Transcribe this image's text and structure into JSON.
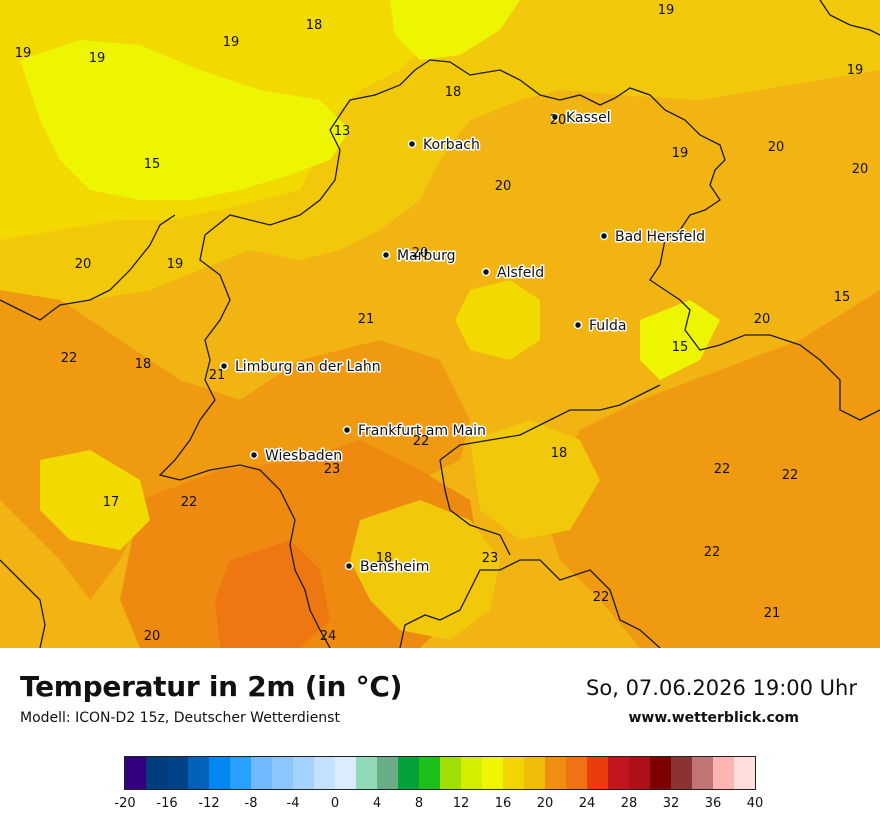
{
  "title": "Temperatur in 2m (in °C)",
  "model": "Modell: ICON-D2 15z, Deutscher Wetterdienst",
  "datetime": "So, 07.06.2026 19:00 Uhr",
  "website": "www.wetterblick.com",
  "colors": {
    "t15": "#eef500",
    "t16": "#f2d900",
    "t18": "#f2c80a",
    "t20": "#f1b413",
    "t22": "#ef9a11",
    "t23": "#ef8a10",
    "t24": "#ee7711",
    "border": "#1a1a1a"
  },
  "cities": [
    {
      "name": "Kassel"
    },
    {
      "name": "Korbach"
    },
    {
      "name": "Bad Hersfeld"
    },
    {
      "name": "Marburg"
    },
    {
      "name": "Alsfeld"
    },
    {
      "name": "Fulda"
    },
    {
      "name": "Limburg an der Lahn"
    },
    {
      "name": "Frankfurt am Main"
    },
    {
      "name": "Wiesbaden"
    },
    {
      "name": "Bensheim"
    }
  ],
  "temperature_labels": [
    "19",
    "18",
    "19",
    "19",
    "19",
    "19",
    "18",
    "13",
    "20",
    "15",
    "19",
    "20",
    "20",
    "20",
    "19",
    "20",
    "15",
    "21",
    "20",
    "22",
    "18",
    "21",
    "15",
    "22",
    "20",
    "23",
    "18",
    "22",
    "22",
    "17",
    "22",
    "18",
    "23",
    "22",
    "22",
    "21",
    "20",
    "24"
  ],
  "legend": {
    "colors": [
      "#330082",
      "#003c7e",
      "#00418a",
      "#0062b8",
      "#0088f0",
      "#28a0ff",
      "#70baff",
      "#8cc6ff",
      "#a6d2ff",
      "#c4e0ff",
      "#dcecff",
      "#90dab9",
      "#68ad85",
      "#04a23a",
      "#1fbf1b",
      "#a1dd06",
      "#d5ed00",
      "#f0f500",
      "#f2d400",
      "#f2bd0a",
      "#ef8e13",
      "#ef7312",
      "#e93b0b",
      "#c0171e",
      "#ad1017",
      "#7d0000",
      "#8b3232",
      "#c17474",
      "#ffb4b4",
      "#ffdede"
    ],
    "ticks": [
      "-20",
      "-16",
      "-12",
      "-8",
      "-4",
      "0",
      "4",
      "8",
      "12",
      "16",
      "20",
      "24",
      "28",
      "32",
      "36",
      "40"
    ]
  }
}
